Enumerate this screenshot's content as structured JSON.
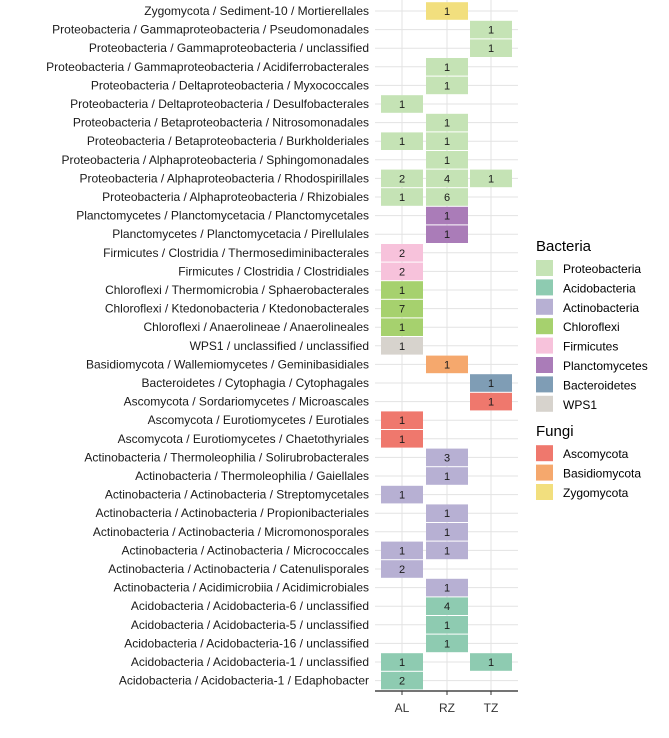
{
  "chart_data": {
    "type": "heatmap",
    "title": "",
    "xlabel": "",
    "ylabel": "",
    "columns": [
      "AL",
      "RZ",
      "TZ"
    ],
    "rows": [
      {
        "label": "Zygomycota / Sediment-10 / Mortierellales",
        "group": "Zygomycota",
        "values": [
          null,
          1,
          null
        ]
      },
      {
        "label": "Proteobacteria / Gammaproteobacteria / Pseudomonadales",
        "group": "Proteobacteria",
        "values": [
          null,
          null,
          1
        ]
      },
      {
        "label": "Proteobacteria / Gammaproteobacteria / unclassified",
        "group": "Proteobacteria",
        "values": [
          null,
          null,
          1
        ]
      },
      {
        "label": "Proteobacteria / Gammaproteobacteria / Acidiferrobacterales",
        "group": "Proteobacteria",
        "values": [
          null,
          1,
          null
        ]
      },
      {
        "label": "Proteobacteria / Deltaproteobacteria / Myxococcales",
        "group": "Proteobacteria",
        "values": [
          null,
          1,
          null
        ]
      },
      {
        "label": "Proteobacteria / Deltaproteobacteria / Desulfobacterales",
        "group": "Proteobacteria",
        "values": [
          1,
          null,
          null
        ]
      },
      {
        "label": "Proteobacteria / Betaproteobacteria / Nitrosomonadales",
        "group": "Proteobacteria",
        "values": [
          null,
          1,
          null
        ]
      },
      {
        "label": "Proteobacteria / Betaproteobacteria / Burkholderiales",
        "group": "Proteobacteria",
        "values": [
          1,
          1,
          null
        ]
      },
      {
        "label": "Proteobacteria / Alphaproteobacteria / Sphingomonadales",
        "group": "Proteobacteria",
        "values": [
          null,
          1,
          null
        ]
      },
      {
        "label": "Proteobacteria / Alphaproteobacteria / Rhodospirillales",
        "group": "Proteobacteria",
        "values": [
          2,
          4,
          1
        ]
      },
      {
        "label": "Proteobacteria / Alphaproteobacteria / Rhizobiales",
        "group": "Proteobacteria",
        "values": [
          1,
          6,
          null
        ]
      },
      {
        "label": "Planctomycetes / Planctomycetacia / Planctomycetales",
        "group": "Planctomycetes",
        "values": [
          null,
          1,
          null
        ]
      },
      {
        "label": "Planctomycetes / Planctomycetacia / Pirellulales",
        "group": "Planctomycetes",
        "values": [
          null,
          1,
          null
        ]
      },
      {
        "label": "Firmicutes / Clostridia / Thermosediminibacterales",
        "group": "Firmicutes",
        "values": [
          2,
          null,
          null
        ]
      },
      {
        "label": "Firmicutes / Clostridia / Clostridiales",
        "group": "Firmicutes",
        "values": [
          2,
          null,
          null
        ]
      },
      {
        "label": "Chloroflexi / Thermomicrobia / Sphaerobacterales",
        "group": "Chloroflexi",
        "values": [
          1,
          null,
          null
        ]
      },
      {
        "label": "Chloroflexi / Ktedonobacteria / Ktedonobacterales",
        "group": "Chloroflexi",
        "values": [
          7,
          null,
          null
        ]
      },
      {
        "label": "Chloroflexi / Anaerolineae / Anaerolineales",
        "group": "Chloroflexi",
        "values": [
          1,
          null,
          null
        ]
      },
      {
        "label": "WPS1 / unclassified / unclassified",
        "group": "WPS1",
        "values": [
          1,
          null,
          null
        ]
      },
      {
        "label": "Basidiomycota / Wallemiomycetes / Geminibasidiales",
        "group": "Basidiomycota",
        "values": [
          null,
          1,
          null
        ]
      },
      {
        "label": "Bacteroidetes / Cytophagia / Cytophagales",
        "group": "Bacteroidetes",
        "values": [
          null,
          null,
          1
        ]
      },
      {
        "label": "Ascomycota / Sordariomycetes / Microascales",
        "group": "Ascomycota",
        "values": [
          null,
          null,
          1
        ]
      },
      {
        "label": "Ascomycota / Eurotiomycetes / Eurotiales",
        "group": "Ascomycota",
        "values": [
          1,
          null,
          null
        ]
      },
      {
        "label": "Ascomycota / Eurotiomycetes / Chaetothyriales",
        "group": "Ascomycota",
        "values": [
          1,
          null,
          null
        ]
      },
      {
        "label": "Actinobacteria / Thermoleophilia / Solirubrobacterales",
        "group": "Actinobacteria",
        "values": [
          null,
          3,
          null
        ]
      },
      {
        "label": "Actinobacteria / Thermoleophilia / Gaiellales",
        "group": "Actinobacteria",
        "values": [
          null,
          1,
          null
        ]
      },
      {
        "label": "Actinobacteria / Actinobacteria / Streptomycetales",
        "group": "Actinobacteria",
        "values": [
          1,
          null,
          null
        ]
      },
      {
        "label": "Actinobacteria / Actinobacteria / Propionibacteriales",
        "group": "Actinobacteria",
        "values": [
          null,
          1,
          null
        ]
      },
      {
        "label": "Actinobacteria / Actinobacteria / Micromonosporales",
        "group": "Actinobacteria",
        "values": [
          null,
          1,
          null
        ]
      },
      {
        "label": "Actinobacteria / Actinobacteria / Micrococcales",
        "group": "Actinobacteria",
        "values": [
          1,
          1,
          null
        ]
      },
      {
        "label": "Actinobacteria / Actinobacteria / Catenulisporales",
        "group": "Actinobacteria",
        "values": [
          2,
          null,
          null
        ]
      },
      {
        "label": "Actinobacteria / Acidimicrobiia / Acidimicrobiales",
        "group": "Actinobacteria",
        "values": [
          null,
          1,
          null
        ]
      },
      {
        "label": "Acidobacteria / Acidobacteria-6 / unclassified",
        "group": "Acidobacteria",
        "values": [
          null,
          4,
          null
        ]
      },
      {
        "label": "Acidobacteria / Acidobacteria-5 / unclassified",
        "group": "Acidobacteria",
        "values": [
          null,
          1,
          null
        ]
      },
      {
        "label": "Acidobacteria / Acidobacteria-16 / unclassified",
        "group": "Acidobacteria",
        "values": [
          null,
          1,
          null
        ]
      },
      {
        "label": "Acidobacteria / Acidobacteria-1 / unclassified",
        "group": "Acidobacteria",
        "values": [
          1,
          null,
          1
        ]
      },
      {
        "label": "Acidobacteria / Acidobacteria-1 / Edaphobacter",
        "group": "Acidobacteria",
        "values": [
          2,
          null,
          null
        ]
      }
    ],
    "legend": [
      {
        "title": "Bacteria",
        "items": [
          {
            "name": "Proteobacteria",
            "color": "#c5e3b5"
          },
          {
            "name": "Acidobacteria",
            "color": "#8ecbb1"
          },
          {
            "name": "Actinobacteria",
            "color": "#b7b0d3"
          },
          {
            "name": "Chloroflexi",
            "color": "#a6d16e"
          },
          {
            "name": "Firmicutes",
            "color": "#f7c2db"
          },
          {
            "name": "Planctomycetes",
            "color": "#aa7cb8"
          },
          {
            "name": "Bacteroidetes",
            "color": "#7f9db5"
          },
          {
            "name": "WPS1",
            "color": "#d7d3cd"
          }
        ]
      },
      {
        "title": "Fungi",
        "items": [
          {
            "name": "Ascomycota",
            "color": "#ef786d"
          },
          {
            "name": "Basidiomycota",
            "color": "#f5a86d"
          },
          {
            "name": "Zygomycota",
            "color": "#f2df7e"
          }
        ]
      }
    ]
  }
}
